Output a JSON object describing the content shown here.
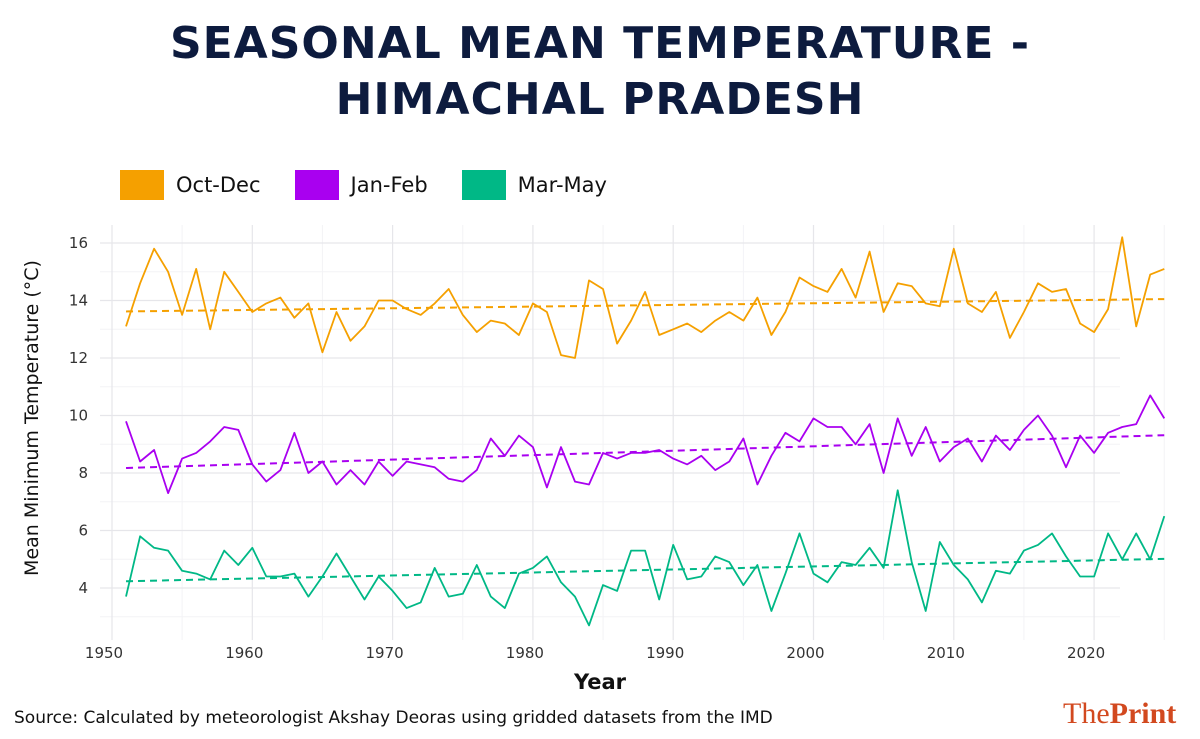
{
  "title_line1": "SEASONAL MEAN TEMPERATURE -",
  "title_line2": "HIMACHAL PRADESH",
  "source": "Source:  Calculated by meteorologist Akshay Deoras using gridded datasets from the IMD",
  "logo": {
    "the": "The",
    "print": "Print"
  },
  "chart_data": {
    "type": "line",
    "title": "SEASONAL MEAN TEMPERATURE - HIMACHAL PRADESH",
    "xlabel": "Year",
    "ylabel": "Mean Minimum Temperature (°C)",
    "xlim": [
      1950,
      2026
    ],
    "ylim": [
      2.5,
      16.5
    ],
    "xticks": [
      "1950",
      "1960",
      "1970",
      "1980",
      "1990",
      "2000",
      "2010",
      "2020"
    ],
    "yticks": [
      "4",
      "6",
      "8",
      "10",
      "12",
      "14",
      "16"
    ],
    "grid": true,
    "legend_position": "top-left",
    "trend_lines": "dashed linear fit per series",
    "x_start": 1951,
    "series": [
      {
        "name": "Oct-Dec",
        "color": "#F5A000",
        "values": [
          13.1,
          14.6,
          15.8,
          15.0,
          13.5,
          15.1,
          13.0,
          15.0,
          14.3,
          13.6,
          13.9,
          14.1,
          13.4,
          13.9,
          12.2,
          13.6,
          12.6,
          13.1,
          14.0,
          14.0,
          13.7,
          13.5,
          13.9,
          14.4,
          13.5,
          12.9,
          13.3,
          13.2,
          12.8,
          13.9,
          13.6,
          12.1,
          12.0,
          14.7,
          14.4,
          12.5,
          13.3,
          14.3,
          12.8,
          13.0,
          13.2,
          12.9,
          13.3,
          13.6,
          13.3,
          14.1,
          12.8,
          13.6,
          14.8,
          14.5,
          14.3,
          15.1,
          14.1,
          15.7,
          13.6,
          14.6,
          14.5,
          13.9,
          13.8,
          15.8,
          13.9,
          13.6,
          14.3,
          12.7,
          13.6,
          14.6,
          14.3,
          14.4,
          13.2,
          12.9,
          13.7,
          16.2,
          13.1,
          14.9,
          15.1
        ]
      },
      {
        "name": "Jan-Feb",
        "color": "#A900F0",
        "values": [
          9.8,
          8.4,
          8.8,
          7.3,
          8.5,
          8.7,
          9.1,
          9.6,
          9.5,
          8.3,
          7.7,
          8.1,
          9.4,
          8.0,
          8.4,
          7.6,
          8.1,
          7.6,
          8.4,
          7.9,
          8.4,
          8.3,
          8.2,
          7.8,
          7.7,
          8.1,
          9.2,
          8.6,
          9.3,
          8.9,
          7.5,
          8.9,
          7.7,
          7.6,
          8.7,
          8.5,
          8.7,
          8.7,
          8.8,
          8.5,
          8.3,
          8.6,
          8.1,
          8.4,
          9.2,
          7.6,
          8.6,
          9.4,
          9.1,
          9.9,
          9.6,
          9.6,
          9.0,
          9.7,
          8.0,
          9.9,
          8.6,
          9.6,
          8.4,
          8.9,
          9.2,
          8.4,
          9.3,
          8.8,
          9.5,
          10.0,
          9.3,
          8.2,
          9.3,
          8.7,
          9.4,
          9.6,
          9.7,
          10.7,
          9.9
        ]
      },
      {
        "name": "Mar-May",
        "color": "#00B886",
        "values": [
          3.7,
          5.8,
          5.4,
          5.3,
          4.6,
          4.5,
          4.3,
          5.3,
          4.8,
          5.4,
          4.4,
          4.4,
          4.5,
          3.7,
          4.4,
          5.2,
          4.4,
          3.6,
          4.4,
          3.9,
          3.3,
          3.5,
          4.7,
          3.7,
          3.8,
          4.8,
          3.7,
          3.3,
          4.5,
          4.7,
          5.1,
          4.2,
          3.7,
          2.7,
          4.1,
          3.9,
          5.3,
          5.3,
          3.6,
          5.5,
          4.3,
          4.4,
          5.1,
          4.9,
          4.1,
          4.8,
          3.2,
          4.5,
          5.9,
          4.5,
          4.2,
          4.9,
          4.8,
          5.4,
          4.7,
          7.4,
          4.9,
          3.2,
          5.6,
          4.8,
          4.3,
          3.5,
          4.6,
          4.5,
          5.3,
          5.5,
          5.9,
          5.1,
          4.4,
          4.4,
          5.9,
          5.0,
          5.9,
          5.0,
          6.5
        ]
      }
    ]
  }
}
